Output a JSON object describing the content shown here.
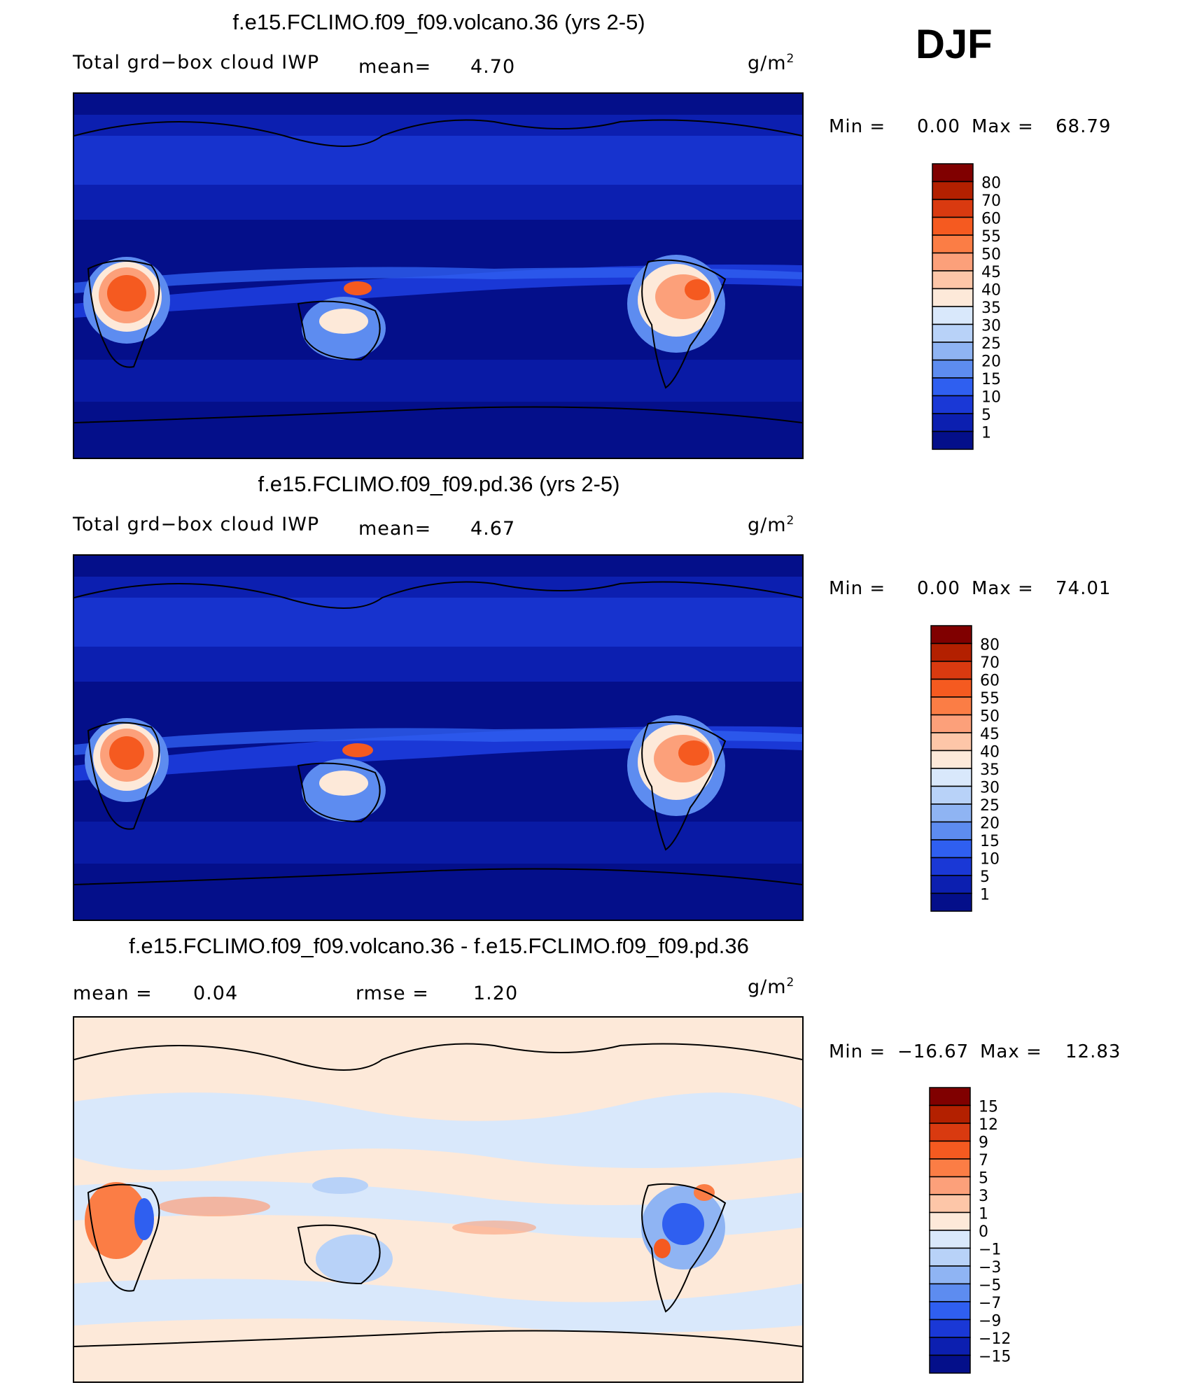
{
  "season": "DJF",
  "panels": [
    {
      "title": "f.e15.FCLIMO.f09_f09.volcano.36 (yrs 2-5)",
      "left_label": "Total grd−box cloud IWP",
      "mean_label": "mean=",
      "mean_value": "4.70",
      "units": "g/m",
      "units_sup": "2",
      "min_label": "Min  =",
      "min_value": "0.00",
      "max_label": "Max  =",
      "max_value": "68.79",
      "colorbar": {
        "levels": [
          "80",
          "70",
          "60",
          "55",
          "50",
          "45",
          "40",
          "35",
          "30",
          "25",
          "20",
          "15",
          "10",
          "5",
          "1"
        ],
        "colors": [
          "#800000",
          "#b32000",
          "#d93a10",
          "#f55a20",
          "#fb7d45",
          "#fca07a",
          "#fdc6a8",
          "#fde9d9",
          "#d9e8fb",
          "#b8d2f8",
          "#8fb4f3",
          "#5d8cf0",
          "#2f5ff0",
          "#1a38d6",
          "#0c1fb0",
          "#040f8a"
        ]
      }
    },
    {
      "title": "f.e15.FCLIMO.f09_f09.pd.36 (yrs 2-5)",
      "left_label": "Total grd−box cloud IWP",
      "mean_label": "mean=",
      "mean_value": "4.67",
      "units": "g/m",
      "units_sup": "2",
      "min_label": "Min  =",
      "min_value": "0.00",
      "max_label": "Max  =",
      "max_value": "74.01",
      "colorbar": {
        "levels": [
          "80",
          "70",
          "60",
          "55",
          "50",
          "45",
          "40",
          "35",
          "30",
          "25",
          "20",
          "15",
          "10",
          "5",
          "1"
        ],
        "colors": [
          "#800000",
          "#b32000",
          "#d93a10",
          "#f55a20",
          "#fb7d45",
          "#fca07a",
          "#fdc6a8",
          "#fde9d9",
          "#d9e8fb",
          "#b8d2f8",
          "#8fb4f3",
          "#5d8cf0",
          "#2f5ff0",
          "#1a38d6",
          "#0c1fb0",
          "#040f8a"
        ]
      }
    },
    {
      "title": "f.e15.FCLIMO.f09_f09.volcano.36 - f.e15.FCLIMO.f09_f09.pd.36",
      "left_label": "mean  =",
      "mean_value": "0.04",
      "rmse_label": "rmse  =",
      "rmse_value": "1.20",
      "units": "g/m",
      "units_sup": "2",
      "min_label": "Min  =",
      "min_value": "−16.67",
      "max_label": "Max  =",
      "max_value": "12.83",
      "colorbar": {
        "levels": [
          "15",
          "12",
          "9",
          "7",
          "5",
          "3",
          "1",
          "0",
          "−1",
          "−3",
          "−5",
          "−7",
          "−9",
          "−12",
          "−15"
        ],
        "colors": [
          "#800000",
          "#b32000",
          "#d93a10",
          "#f55a20",
          "#fb7d45",
          "#fca07a",
          "#fdc6a8",
          "#fde9d9",
          "#d9e8fb",
          "#b8d2f8",
          "#8fb4f3",
          "#5d8cf0",
          "#2f5ff0",
          "#1a38d6",
          "#0c1fb0",
          "#040f8a"
        ]
      }
    }
  ],
  "chart_data": [
    {
      "type": "heatmap",
      "title": "f.e15.FCLIMO.f09_f09.volcano.36 (yrs 2-5)",
      "variable": "Total grd−box cloud IWP",
      "units": "g/m2",
      "mean": 4.7,
      "min": 0.0,
      "max": 68.79,
      "contour_levels": [
        1,
        5,
        10,
        15,
        20,
        25,
        30,
        35,
        40,
        45,
        50,
        55,
        60,
        70,
        80
      ],
      "xlabel": "",
      "ylabel": ""
    },
    {
      "type": "heatmap",
      "title": "f.e15.FCLIMO.f09_f09.pd.36 (yrs 2-5)",
      "variable": "Total grd−box cloud IWP",
      "units": "g/m2",
      "mean": 4.67,
      "min": 0.0,
      "max": 74.01,
      "contour_levels": [
        1,
        5,
        10,
        15,
        20,
        25,
        30,
        35,
        40,
        45,
        50,
        55,
        60,
        70,
        80
      ],
      "xlabel": "",
      "ylabel": ""
    },
    {
      "type": "heatmap",
      "title": "f.e15.FCLIMO.f09_f09.volcano.36 - f.e15.FCLIMO.f09_f09.pd.36",
      "units": "g/m2",
      "mean": 0.04,
      "rmse": 1.2,
      "min": -16.67,
      "max": 12.83,
      "contour_levels": [
        -15,
        -12,
        -9,
        -7,
        -5,
        -3,
        -1,
        0,
        1,
        3,
        5,
        7,
        9,
        12,
        15
      ],
      "xlabel": "",
      "ylabel": ""
    }
  ]
}
